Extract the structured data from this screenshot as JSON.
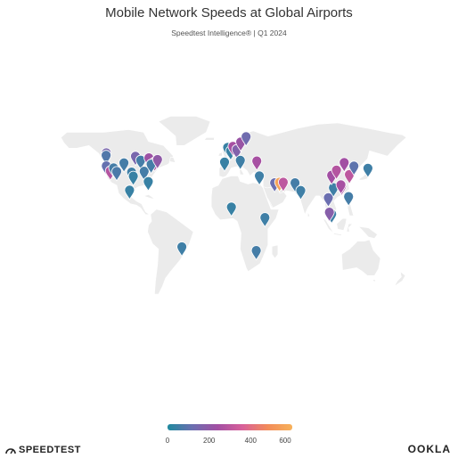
{
  "header": {
    "title": "Mobile Network Speeds at Global Airports",
    "subtitle": "Speedtest Intelligence® | Q1 2024"
  },
  "colors": {
    "land": "#ebebeb",
    "land_stroke": "#ffffff",
    "ramp": [
      "#1f8a9e",
      "#6b6fb0",
      "#a24fa3",
      "#d8609a",
      "#f28b5a",
      "#f7b15a"
    ]
  },
  "legend": {
    "ticks": [
      "0",
      "200",
      "400",
      "600"
    ]
  },
  "brands": {
    "left": "SPEEDTEST",
    "right": "OOKLA"
  },
  "chart_data": {
    "type": "map",
    "title": "Mobile Network Speeds at Global Airports",
    "subtitle": "Speedtest Intelligence® | Q1 2024",
    "legend_range": [
      0,
      600
    ],
    "points": [
      {
        "lon": -122.4,
        "lat": 47.4,
        "speed": 150
      },
      {
        "lon": -122.6,
        "lat": 45.6,
        "speed": 80
      },
      {
        "lon": -122.4,
        "lat": 37.6,
        "speed": 110
      },
      {
        "lon": -118.4,
        "lat": 33.9,
        "speed": 280
      },
      {
        "lon": -115.1,
        "lat": 36.1,
        "speed": 60
      },
      {
        "lon": -112.0,
        "lat": 33.4,
        "speed": 70
      },
      {
        "lon": -104.7,
        "lat": 39.9,
        "speed": 60
      },
      {
        "lon": -97.0,
        "lat": 32.9,
        "speed": 50
      },
      {
        "lon": -95.3,
        "lat": 29.9,
        "speed": 40
      },
      {
        "lon": -99.1,
        "lat": 19.4,
        "speed": 40
      },
      {
        "lon": -93.2,
        "lat": 44.9,
        "speed": 150
      },
      {
        "lon": -87.9,
        "lat": 41.9,
        "speed": 60
      },
      {
        "lon": -84.4,
        "lat": 33.6,
        "speed": 60
      },
      {
        "lon": -80.3,
        "lat": 25.8,
        "speed": 40
      },
      {
        "lon": -79.6,
        "lat": 43.7,
        "speed": 230
      },
      {
        "lon": -73.8,
        "lat": 40.6,
        "speed": 260
      },
      {
        "lon": -77.4,
        "lat": 38.9,
        "speed": 60
      },
      {
        "lon": -71.0,
        "lat": 42.4,
        "speed": 200
      },
      {
        "lon": -46.5,
        "lat": -23.4,
        "speed": 50
      },
      {
        "lon": -0.5,
        "lat": 51.5,
        "speed": 40
      },
      {
        "lon": 2.5,
        "lat": 49.0,
        "speed": 40
      },
      {
        "lon": 4.8,
        "lat": 52.3,
        "speed": 250
      },
      {
        "lon": 8.6,
        "lat": 50.0,
        "speed": 170
      },
      {
        "lon": 12.6,
        "lat": 55.6,
        "speed": 220
      },
      {
        "lon": 18.0,
        "lat": 59.6,
        "speed": 130
      },
      {
        "lon": -3.6,
        "lat": 40.5,
        "speed": 40
      },
      {
        "lon": 12.2,
        "lat": 41.8,
        "speed": 50
      },
      {
        "lon": 28.8,
        "lat": 41.3,
        "speed": 250
      },
      {
        "lon": 31.4,
        "lat": 30.1,
        "speed": 50
      },
      {
        "lon": 46.7,
        "lat": 24.9,
        "speed": 120
      },
      {
        "lon": 51.6,
        "lat": 25.3,
        "speed": 560
      },
      {
        "lon": 55.4,
        "lat": 25.3,
        "speed": 300
      },
      {
        "lon": 67.2,
        "lat": 24.9,
        "speed": 60
      },
      {
        "lon": 72.9,
        "lat": 19.1,
        "speed": 50
      },
      {
        "lon": 3.3,
        "lat": 6.6,
        "speed": 40
      },
      {
        "lon": 36.9,
        "lat": -1.3,
        "speed": 50
      },
      {
        "lon": 28.2,
        "lat": -26.1,
        "speed": 60
      },
      {
        "lon": 100.7,
        "lat": 13.7,
        "speed": 120
      },
      {
        "lon": 105.8,
        "lat": 21.2,
        "speed": 50
      },
      {
        "lon": 103.99,
        "lat": 1.36,
        "speed": 50
      },
      {
        "lon": 101.7,
        "lat": 2.7,
        "speed": 180
      },
      {
        "lon": 113.9,
        "lat": 22.3,
        "speed": 260
      },
      {
        "lon": 113.3,
        "lat": 23.4,
        "speed": 250
      },
      {
        "lon": 116.6,
        "lat": 40.1,
        "speed": 240
      },
      {
        "lon": 121.8,
        "lat": 31.1,
        "speed": 300
      },
      {
        "lon": 126.4,
        "lat": 37.5,
        "speed": 100
      },
      {
        "lon": 140.4,
        "lat": 35.8,
        "speed": 50
      },
      {
        "lon": 121.0,
        "lat": 14.5,
        "speed": 60
      },
      {
        "lon": 104.0,
        "lat": 30.6,
        "speed": 240
      },
      {
        "lon": 108.8,
        "lat": 34.4,
        "speed": 280
      }
    ]
  }
}
